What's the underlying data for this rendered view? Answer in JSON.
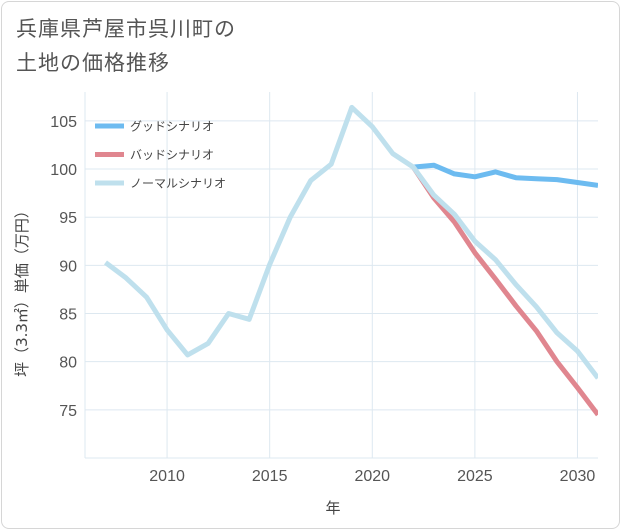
{
  "title_lines": [
    "兵庫県芦屋市呉川町の",
    "土地の価格推移"
  ],
  "chart_data": {
    "type": "line",
    "title": "兵庫県芦屋市呉川町の土地の価格推移",
    "xlabel": "年",
    "ylabel": "坪（3.3㎡）単価（万円）",
    "xlim": [
      2006,
      2031
    ],
    "ylim": [
      70,
      108
    ],
    "x_ticks": [
      2010,
      2015,
      2020,
      2025,
      2030
    ],
    "y_ticks": [
      75,
      80,
      85,
      90,
      95,
      100,
      105
    ],
    "legend_position": "top-left",
    "series": [
      {
        "name": "グッドシナリオ",
        "color": "#6dbbf0",
        "x": [
          2022,
          2023,
          2024,
          2025,
          2026,
          2027,
          2028,
          2029,
          2030,
          2031
        ],
        "values": [
          100.2,
          100.4,
          99.5,
          99.2,
          99.7,
          99.1,
          99.0,
          98.9,
          98.6,
          98.3
        ]
      },
      {
        "name": "バッドシナリオ",
        "color": "#e0868f",
        "x": [
          2022,
          2023,
          2024,
          2025,
          2026,
          2027,
          2028,
          2029,
          2030,
          2031
        ],
        "values": [
          100.2,
          97.0,
          94.5,
          91.3,
          88.6,
          85.8,
          83.2,
          80.0,
          77.3,
          74.5
        ]
      },
      {
        "name": "ノーマルシナリオ",
        "color": "#bfe0ed",
        "x": [
          2007,
          2008,
          2009,
          2010,
          2011,
          2012,
          2013,
          2014,
          2015,
          2016,
          2017,
          2018,
          2019,
          2020,
          2021,
          2022,
          2023,
          2024,
          2025,
          2026,
          2027,
          2028,
          2029,
          2030,
          2031
        ],
        "values": [
          90.3,
          88.7,
          86.7,
          83.3,
          80.7,
          81.9,
          85.0,
          84.4,
          90.1,
          95.0,
          98.8,
          100.5,
          106.4,
          104.4,
          101.6,
          100.2,
          97.3,
          95.3,
          92.5,
          90.6,
          88.0,
          85.7,
          83.0,
          81.1,
          78.3
        ]
      }
    ]
  }
}
